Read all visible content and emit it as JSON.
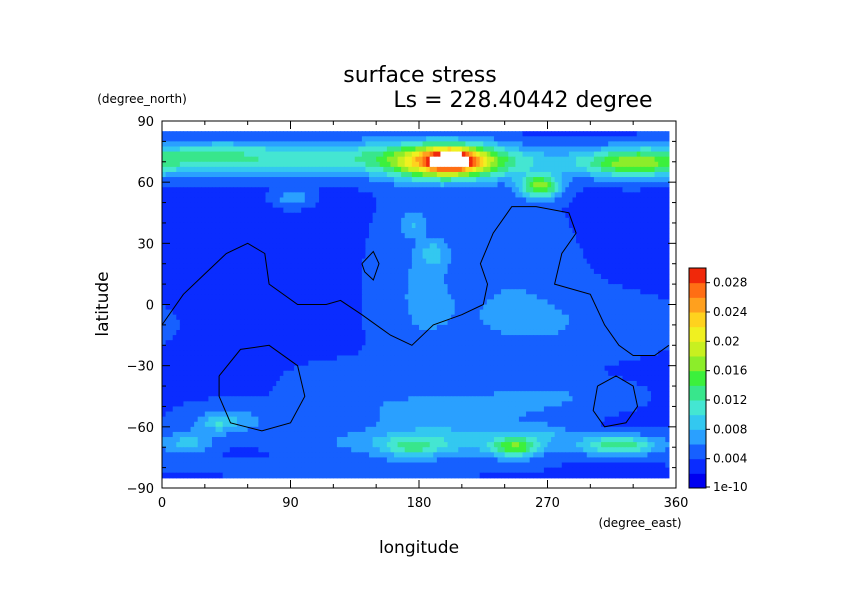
{
  "chart_data": {
    "type": "heatmap",
    "title": "surface stress",
    "subtitle": "Ls = 228.40442 degree",
    "xlabel": "longitude",
    "ylabel": "latitude",
    "x_unit": "(degree_east)",
    "y_unit": "(degree_north)",
    "xlim": [
      0,
      360
    ],
    "ylim": [
      -90,
      90
    ],
    "x_ticks": [
      "0",
      "90",
      "180",
      "270",
      "360"
    ],
    "y_ticks": [
      "90",
      "60",
      "30",
      "0",
      "−30",
      "−60",
      "−90"
    ],
    "colorbar": {
      "labels": [
        "1e-10",
        "0.004",
        "0.008",
        "0.012",
        "0.016",
        "0.02",
        "0.024",
        "0.028"
      ],
      "levels": [
        1e-10,
        0.002,
        0.004,
        0.006,
        0.008,
        0.01,
        0.012,
        0.014,
        0.016,
        0.018,
        0.02,
        0.022,
        0.024,
        0.026,
        0.028,
        0.03
      ],
      "colors": [
        "#0000f0",
        "#0a2cff",
        "#1660ff",
        "#2aa0ff",
        "#33c8f0",
        "#44e6d2",
        "#38e68c",
        "#3cf03c",
        "#8ced2a",
        "#c8f020",
        "#f0f020",
        "#ffd21e",
        "#ffa01e",
        "#ff6e14",
        "#f0280a"
      ],
      "max_color": "#ffffff"
    },
    "field": {
      "background": 0.0035,
      "blobs": [
        {
          "lon": 100,
          "lat": 72,
          "sx": 75,
          "sy": 6,
          "v": 0.008
        },
        {
          "lon": 200,
          "lat": 70,
          "sx": 28,
          "sy": 6,
          "v": 0.02
        },
        {
          "lon": 203,
          "lat": 71,
          "sx": 11,
          "sy": 3.5,
          "v": 0.012
        },
        {
          "lon": 25,
          "lat": 72,
          "sx": 28,
          "sy": 5,
          "v": 0.004
        },
        {
          "lon": 330,
          "lat": 69,
          "sx": 22,
          "sy": 5,
          "v": 0.01
        },
        {
          "lon": 285,
          "lat": 70,
          "sx": 45,
          "sy": 5,
          "v": 0.004
        },
        {
          "lon": 265,
          "lat": 58,
          "sx": 10,
          "sy": 4,
          "v": 0.013
        },
        {
          "lon": 92,
          "lat": 52,
          "sx": 9,
          "sy": 3,
          "v": 0.004
        },
        {
          "lon": 180,
          "lat": 10,
          "sx": 22,
          "sy": 32,
          "v": 0.0025
        },
        {
          "lon": 190,
          "lat": 25,
          "sx": 6,
          "sy": 4,
          "v": 0.004
        },
        {
          "lon": 175,
          "lat": 40,
          "sx": 6,
          "sy": 4,
          "v": 0.003
        },
        {
          "lon": 245,
          "lat": 15,
          "sx": 30,
          "sy": 25,
          "v": 0.002
        },
        {
          "lon": 280,
          "lat": -10,
          "sx": 55,
          "sy": 12,
          "v": 0.002
        },
        {
          "lon": 130,
          "lat": -40,
          "sx": 30,
          "sy": 8,
          "v": 0.002
        },
        {
          "lon": 200,
          "lat": -55,
          "sx": 45,
          "sy": 7,
          "v": 0.0035
        },
        {
          "lon": 50,
          "lat": -57,
          "sx": 25,
          "sy": 6,
          "v": 0.003
        },
        {
          "lon": 270,
          "lat": -45,
          "sx": 40,
          "sy": 6,
          "v": 0.0025
        },
        {
          "lon": 190,
          "lat": -68,
          "sx": 55,
          "sy": 5,
          "v": 0.005
        },
        {
          "lon": 175,
          "lat": -70,
          "sx": 14,
          "sy": 3.5,
          "v": 0.005
        },
        {
          "lon": 248,
          "lat": -70,
          "sx": 12,
          "sy": 3.5,
          "v": 0.01
        },
        {
          "lon": 320,
          "lat": -69,
          "sx": 20,
          "sy": 3.5,
          "v": 0.01
        },
        {
          "lon": 18,
          "lat": -68,
          "sx": 12,
          "sy": 4,
          "v": 0.005
        },
        {
          "lon": 40,
          "lat": -58,
          "sx": 9,
          "sy": 3,
          "v": 0.004
        },
        {
          "lon": 270,
          "lat": -63,
          "sx": 12,
          "sy": 3,
          "v": 0.003
        },
        {
          "lon": 130,
          "lat": -80,
          "sx": 80,
          "sy": 3,
          "v": 0.002
        }
      ]
    },
    "contours": [
      [
        [
          0,
          -10
        ],
        [
          15,
          5
        ],
        [
          30,
          15
        ],
        [
          45,
          25
        ],
        [
          60,
          30
        ],
        [
          72,
          25
        ],
        [
          75,
          10
        ],
        [
          95,
          0
        ],
        [
          115,
          0
        ],
        [
          125,
          2
        ],
        [
          140,
          -5
        ],
        [
          160,
          -15
        ],
        [
          175,
          -20
        ],
        [
          190,
          -10
        ],
        [
          210,
          -5
        ],
        [
          225,
          0
        ],
        [
          228,
          10
        ],
        [
          223,
          20
        ],
        [
          232,
          35
        ],
        [
          245,
          48
        ],
        [
          262,
          48
        ],
        [
          285,
          45
        ],
        [
          290,
          35
        ],
        [
          280,
          25
        ],
        [
          275,
          10
        ],
        [
          300,
          5
        ],
        [
          310,
          -10
        ],
        [
          320,
          -20
        ],
        [
          330,
          -25
        ],
        [
          345,
          -25
        ],
        [
          355,
          -20
        ]
      ],
      [
        [
          140,
          20
        ],
        [
          148,
          26
        ],
        [
          152,
          20
        ],
        [
          148,
          12
        ],
        [
          142,
          16
        ],
        [
          140,
          20
        ]
      ],
      [
        [
          40,
          -35
        ],
        [
          55,
          -22
        ],
        [
          75,
          -20
        ],
        [
          95,
          -30
        ],
        [
          100,
          -45
        ],
        [
          90,
          -58
        ],
        [
          70,
          -62
        ],
        [
          48,
          -58
        ],
        [
          40,
          -45
        ],
        [
          40,
          -35
        ]
      ],
      [
        [
          305,
          -40
        ],
        [
          318,
          -35
        ],
        [
          330,
          -40
        ],
        [
          333,
          -50
        ],
        [
          325,
          -58
        ],
        [
          310,
          -60
        ],
        [
          302,
          -52
        ],
        [
          305,
          -40
        ]
      ]
    ]
  }
}
